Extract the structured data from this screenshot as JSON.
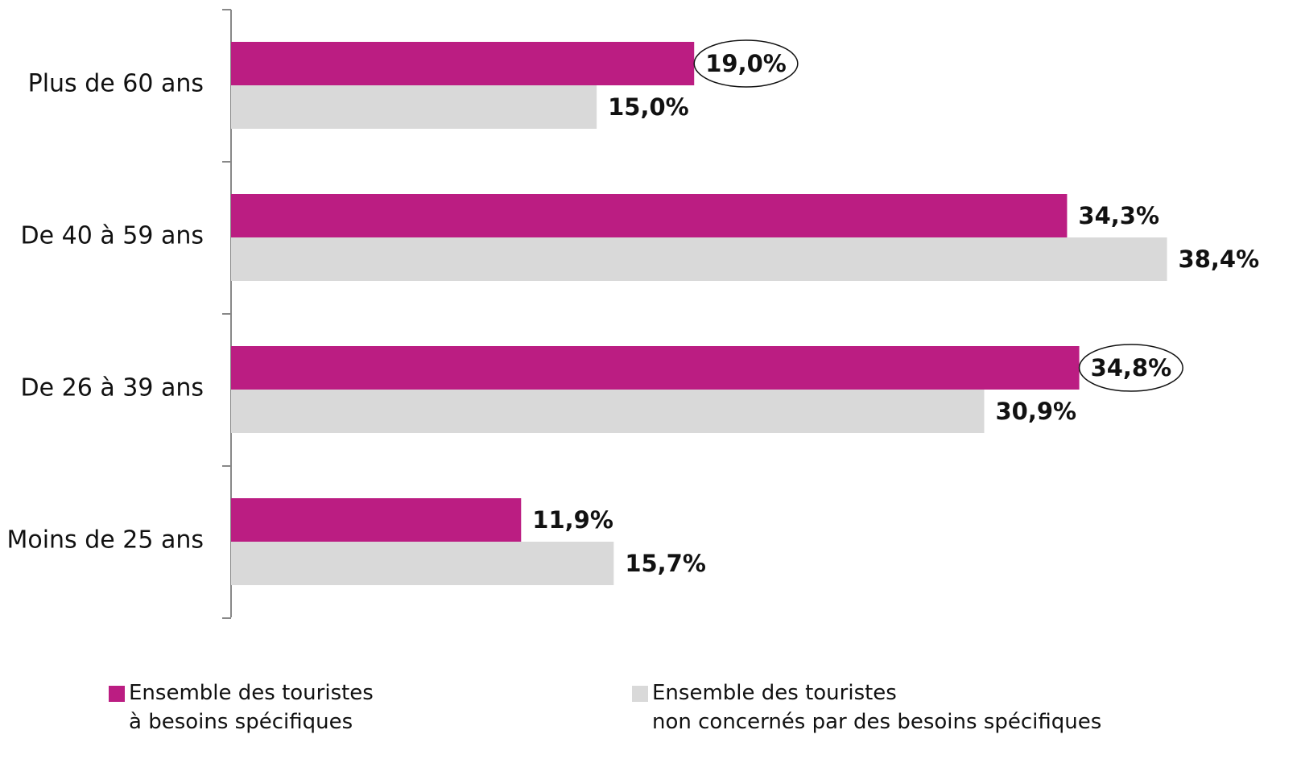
{
  "chart_data": {
    "type": "hbar",
    "categories": [
      "Plus de 60 ans",
      "De 40 à 59 ans",
      "De 26 à 39 ans",
      "Moins de 25 ans"
    ],
    "xlim": [
      0,
      40
    ],
    "series": [
      {
        "name": "Ensemble des touristes\nà besoins spécifiques",
        "color": "#bb1d82",
        "values": [
          19.0,
          34.3,
          34.8,
          11.9
        ],
        "value_labels": [
          "19,0%",
          "34,3%",
          "34,8%",
          "11,9%"
        ],
        "circled_indices": [
          0,
          2
        ]
      },
      {
        "name": "Ensemble des touristes\nnon concernés par des besoins spécifiques",
        "color": "#d9d9d9",
        "values": [
          15.0,
          38.4,
          30.9,
          15.7
        ],
        "value_labels": [
          "15,0%",
          "38,4%",
          "30,9%",
          "15,7%"
        ]
      }
    ]
  }
}
